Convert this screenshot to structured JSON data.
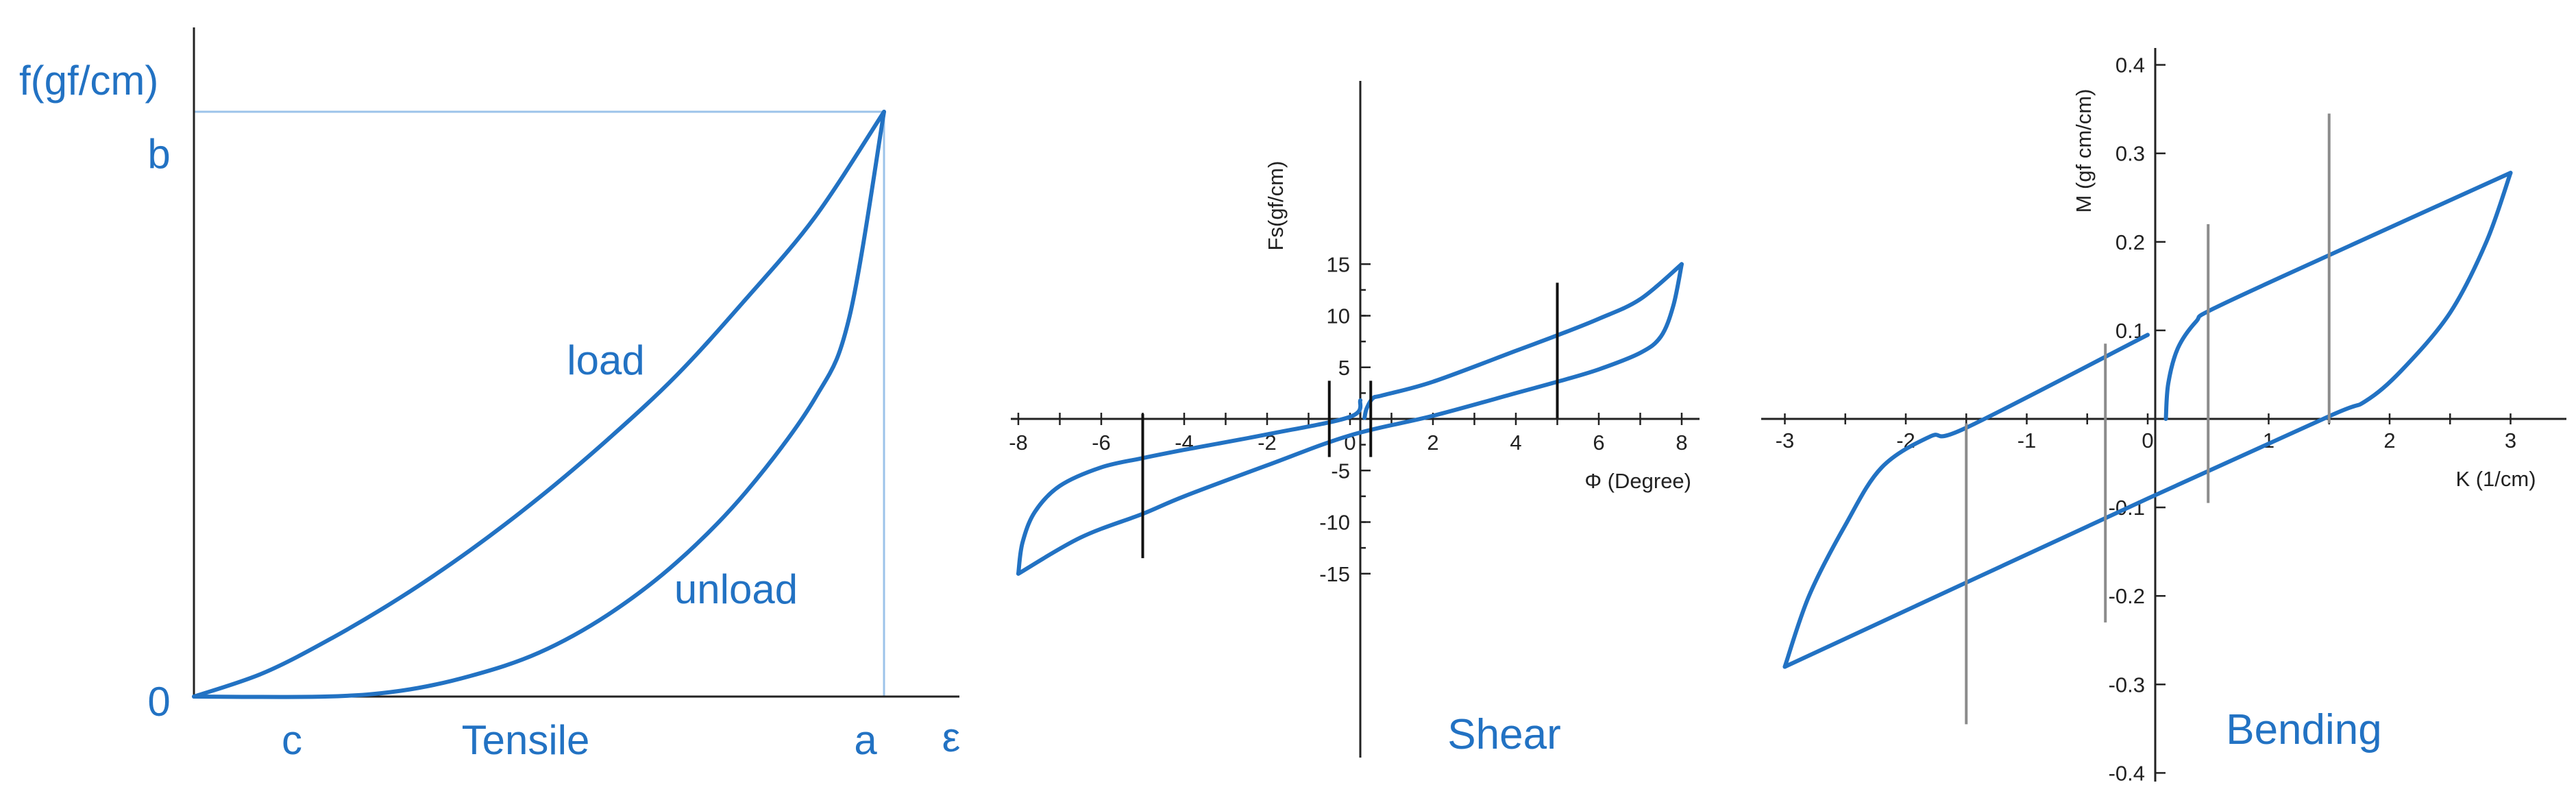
{
  "colors": {
    "curve": "#2272c3",
    "guide": "#9cc3ea",
    "axis": "#222222",
    "shear_markers": "#111111",
    "bending_markers": "#8c8c8c"
  },
  "chart_data": [
    {
      "type": "line",
      "panel_label": "Tensile",
      "ylabel": "f(gf/cm)",
      "xlabel": "ε",
      "tick_labels": {
        "x_c": "c",
        "x_a": "a",
        "y_b": "b",
        "origin": "0"
      },
      "xlim": [
        0,
        1.1
      ],
      "ylim": [
        0,
        1.1
      ],
      "grid": false,
      "series": [
        {
          "name": "load",
          "label_pos": [
            0.55,
            0.57
          ],
          "points": [
            [
              0,
              0
            ],
            [
              0.1,
              0.04
            ],
            [
              0.2,
              0.1
            ],
            [
              0.3,
              0.17
            ],
            [
              0.4,
              0.25
            ],
            [
              0.5,
              0.34
            ],
            [
              0.6,
              0.44
            ],
            [
              0.7,
              0.55
            ],
            [
              0.8,
              0.68
            ],
            [
              0.9,
              0.82
            ],
            [
              1,
              1
            ]
          ]
        },
        {
          "name": "unload",
          "label_pos": [
            0.78,
            0.18
          ],
          "points": [
            [
              0,
              0
            ],
            [
              0.19,
              0
            ],
            [
              0.3,
              0.01
            ],
            [
              0.4,
              0.035
            ],
            [
              0.5,
              0.075
            ],
            [
              0.6,
              0.14
            ],
            [
              0.7,
              0.23
            ],
            [
              0.8,
              0.35
            ],
            [
              0.9,
              0.51
            ],
            [
              0.95,
              0.65
            ],
            [
              1,
              1
            ]
          ]
        }
      ],
      "guides": {
        "x": 1,
        "y": 1
      }
    },
    {
      "type": "line",
      "panel_label": "Shear",
      "xlabel": "Φ (Degree)",
      "ylabel": "Fs(gf/cm)",
      "xlim": [
        -8.5,
        8.5
      ],
      "ylim": [
        -16.5,
        16.5
      ],
      "x_ticks": [
        -8,
        -6,
        -4,
        -2,
        0,
        2,
        4,
        6,
        8
      ],
      "y_ticks": [
        -15,
        -10,
        -5,
        5,
        10,
        15
      ],
      "grid": false,
      "series": [
        {
          "name": "",
          "points": [
            [
              -8,
              -15
            ],
            [
              -7.9,
              -12
            ],
            [
              -7.6,
              -9
            ],
            [
              -7,
              -6.5
            ],
            [
              -6,
              -4.7
            ],
            [
              -5,
              -3.8
            ],
            [
              -4,
              -3
            ],
            [
              -2,
              -1.5
            ],
            [
              0,
              0.2
            ],
            [
              0.25,
              1.8
            ]
          ]
        },
        {
          "name": "",
          "points": [
            [
              -8,
              -15
            ],
            [
              -6.5,
              -11.5
            ],
            [
              -5,
              -9.2
            ],
            [
              -4,
              -7.5
            ],
            [
              -2,
              -4.5
            ],
            [
              0,
              -1.6
            ],
            [
              2,
              0.3
            ],
            [
              4,
              2.5
            ],
            [
              5,
              3.6
            ],
            [
              6,
              4.8
            ],
            [
              7,
              6.4
            ],
            [
              7.5,
              8
            ],
            [
              7.8,
              11
            ],
            [
              8,
              15
            ]
          ]
        },
        {
          "name": "",
          "points": [
            [
              0.35,
              0.1
            ],
            [
              0.4,
              1
            ],
            [
              0.55,
              2
            ],
            [
              0.8,
              2.3
            ],
            [
              2,
              3.6
            ],
            [
              4,
              6.6
            ],
            [
              5,
              8.1
            ],
            [
              6,
              9.7
            ],
            [
              7,
              11.6
            ],
            [
              8,
              15
            ]
          ]
        }
      ],
      "markers": [
        {
          "x": -5,
          "y1": -13.5,
          "y2": 0.5
        },
        {
          "x": -0.5,
          "y1": -3.7,
          "y2": 3.7
        },
        {
          "x": 0.5,
          "y1": -3.7,
          "y2": 3.7
        },
        {
          "x": 5,
          "y1": 0.1,
          "y2": 13.2
        }
      ]
    },
    {
      "type": "line",
      "panel_label": "Bending",
      "xlabel": "K (1/cm)",
      "ylabel": "M (gf cm/cm)",
      "xlim": [
        -3.3,
        3.5
      ],
      "ylim": [
        -0.4,
        0.4
      ],
      "x_ticks": [
        -3,
        -2,
        -1,
        0,
        1,
        2,
        3
      ],
      "y_ticks": [
        -0.4,
        -0.3,
        -0.2,
        -0.1,
        0.1,
        0.2,
        0.3,
        0.4
      ],
      "y_tick_labels": [
        "-0.4",
        "-0.3",
        "-0.2",
        "-0.1",
        "0.1",
        "0.2",
        "0.3",
        "0.4"
      ],
      "grid": false,
      "series": [
        {
          "name": "",
          "points": [
            [
              -3,
              -0.28
            ],
            [
              -2.8,
              -0.2
            ],
            [
              -2.5,
              -0.12
            ],
            [
              -2.2,
              -0.055
            ],
            [
              -1.8,
              -0.02
            ],
            [
              -1.5,
              -0.01
            ],
            [
              0,
              0.095
            ]
          ]
        },
        {
          "name": "",
          "points": [
            [
              -3,
              -0.28
            ],
            [
              0,
              -0.09
            ],
            [
              1.5,
              0.003
            ],
            [
              1.8,
              0.02
            ],
            [
              2.1,
              0.055
            ],
            [
              2.5,
              0.12
            ],
            [
              2.8,
              0.2
            ],
            [
              3,
              0.278
            ]
          ]
        },
        {
          "name": "",
          "points": [
            [
              0.15,
              0
            ],
            [
              0.17,
              0.04
            ],
            [
              0.25,
              0.08
            ],
            [
              0.4,
              0.11
            ],
            [
              0.55,
              0.125
            ],
            [
              1.5,
              0.185
            ],
            [
              3,
              0.278
            ]
          ]
        }
      ],
      "markers": [
        {
          "x": -1.5,
          "y1": -0.345,
          "y2": -0.005
        },
        {
          "x": -0.35,
          "y1": -0.23,
          "y2": 0.085
        },
        {
          "x": 0.5,
          "y1": -0.095,
          "y2": 0.22
        },
        {
          "x": 1.5,
          "y1": -0.005,
          "y2": 0.345
        }
      ]
    }
  ]
}
